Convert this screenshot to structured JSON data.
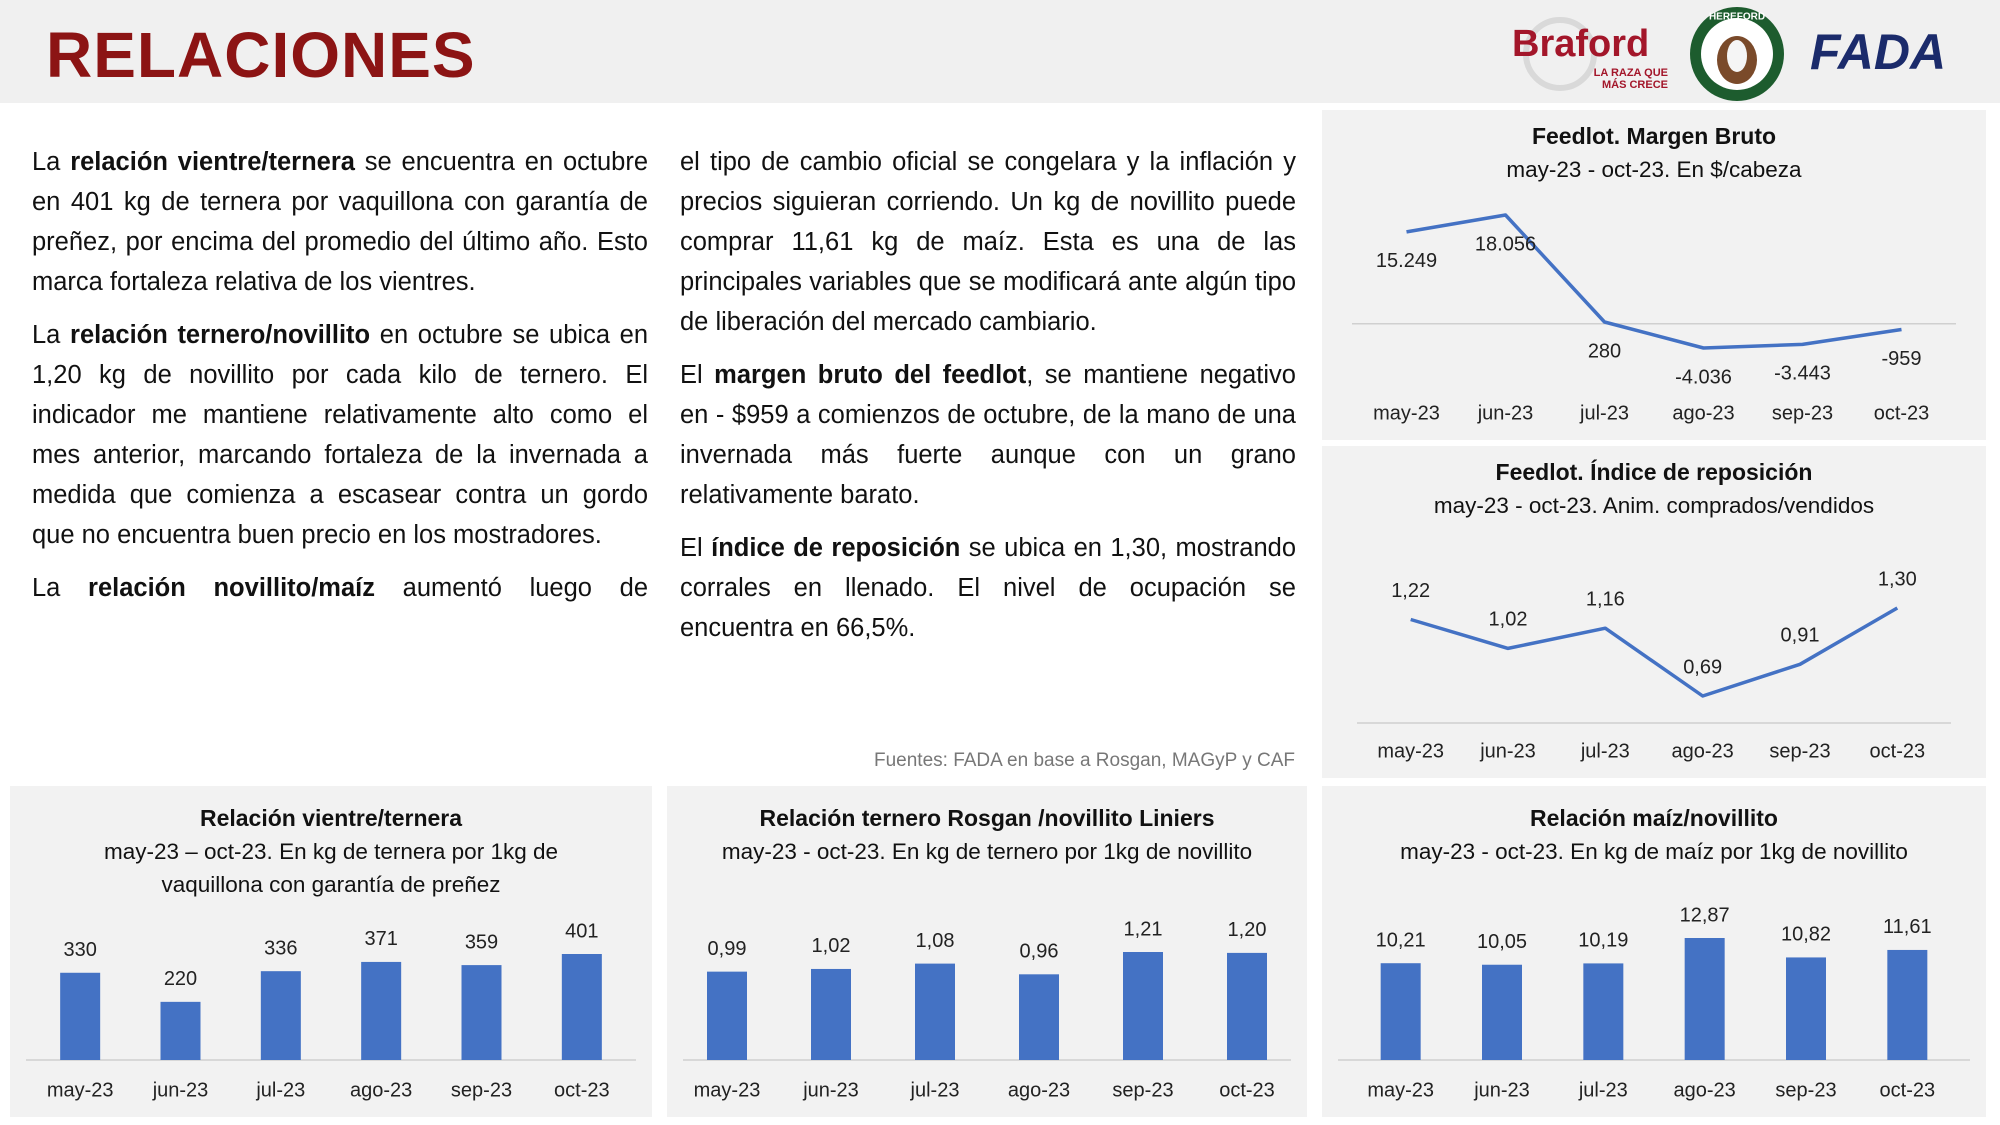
{
  "header": {
    "title": "RELACIONES",
    "logos": {
      "braford": "Braford",
      "braford_tagline": [
        "LA RAZA QUE",
        "MÁS CRECE"
      ],
      "hereford": "HEREFORD",
      "fada": "FADA"
    }
  },
  "text": {
    "columns": [
      [
        [
          "La ",
          "relación vientre/ternera",
          " se encuentra en octubre en 401 kg de ternera por vaquillona con garantía de preñez, por encima del promedio del último año. Esto marca fortaleza relativa de los vientres."
        ],
        [
          "La ",
          "relación ternero/novillito",
          " en octubre se ubica en 1,20 kg de novillito por cada kilo de ternero. El indicador me mantiene relativamente alto como el mes anterior, marcando fortaleza de la invernada a medida que comienza a escasear contra un gordo que no encuentra buen precio en los mostradores."
        ],
        [
          "La ",
          "relación novillito/maíz",
          " aumentó luego de"
        ]
      ],
      [
        [
          "el tipo de cambio oficial se congelara y la inflación y precios siguieran corriendo. Un kg de novillito puede comprar 11,61 kg de maíz. Esta es una de las principales variables que se modificará ante algún tipo de liberación del mercado cambiario."
        ],
        [
          "El ",
          "margen bruto del feedlot",
          ", se mantiene negativo en - $959 a comienzos de octubre, de la mano de una invernada más fuerte aunque con un grano relativamente barato."
        ],
        [
          "El ",
          "índice de reposición",
          " se ubica en 1,30, mostrando corrales en llenado. El nivel de ocupación se encuentra en 66,5%."
        ]
      ]
    ]
  },
  "source": "Fuentes: FADA en base a Rosgan, MAGyP y CAF",
  "chart_data": [
    {
      "type": "line",
      "title": "Feedlot. Margen Bruto",
      "subtitle": "may-23 - oct-23. En $/cabeza",
      "categories": [
        "may-23",
        "jun-23",
        "jul-23",
        "ago-23",
        "sep-23",
        "oct-23"
      ],
      "values": [
        15249,
        18056,
        280,
        -4036,
        -3443,
        -959
      ],
      "value_labels": [
        "15.249",
        "18.056",
        "280",
        "-4.036",
        "-3.443",
        "-959"
      ],
      "color": "#4472c4"
    },
    {
      "type": "line",
      "title": "Feedlot. Índice de reposición",
      "subtitle": "may-23 - oct-23. Anim. comprados/vendidos",
      "categories": [
        "may-23",
        "jun-23",
        "jul-23",
        "ago-23",
        "sep-23",
        "oct-23"
      ],
      "values": [
        1.22,
        1.02,
        1.16,
        0.69,
        0.91,
        1.3
      ],
      "value_labels": [
        "1,22",
        "1,02",
        "1,16",
        "0,69",
        "0,91",
        "1,30"
      ],
      "color": "#4472c4"
    },
    {
      "type": "bar",
      "title": "Relación vientre/ternera",
      "subtitle": "may-23 – oct-23. En kg de ternera por 1kg de vaquillona con garantía de preñez",
      "categories": [
        "may-23",
        "jun-23",
        "jul-23",
        "ago-23",
        "sep-23",
        "oct-23"
      ],
      "values": [
        330,
        220,
        336,
        371,
        359,
        401
      ],
      "color": "#4472c4"
    },
    {
      "type": "bar",
      "title": "Relación ternero Rosgan /novillito Liniers",
      "subtitle": "may-23 - oct-23. En kg de ternero por 1kg de novillito",
      "categories": [
        "may-23",
        "jun-23",
        "jul-23",
        "ago-23",
        "sep-23",
        "oct-23"
      ],
      "values": [
        0.99,
        1.02,
        1.08,
        0.96,
        1.21,
        1.2
      ],
      "value_labels": [
        "0,99",
        "1,02",
        "1,08",
        "0,96",
        "1,21",
        "1,20"
      ],
      "color": "#4472c4"
    },
    {
      "type": "bar",
      "title": "Relación maíz/novillito",
      "subtitle": "may-23 - oct-23. En kg de maíz por 1kg de novillito",
      "categories": [
        "may-23",
        "jun-23",
        "jul-23",
        "ago-23",
        "sep-23",
        "oct-23"
      ],
      "values": [
        10.21,
        10.05,
        10.19,
        12.87,
        10.82,
        11.61
      ],
      "value_labels": [
        "10,21",
        "10,05",
        "10,19",
        "12,87",
        "10,82",
        "11,61"
      ],
      "color": "#4472c4"
    }
  ]
}
